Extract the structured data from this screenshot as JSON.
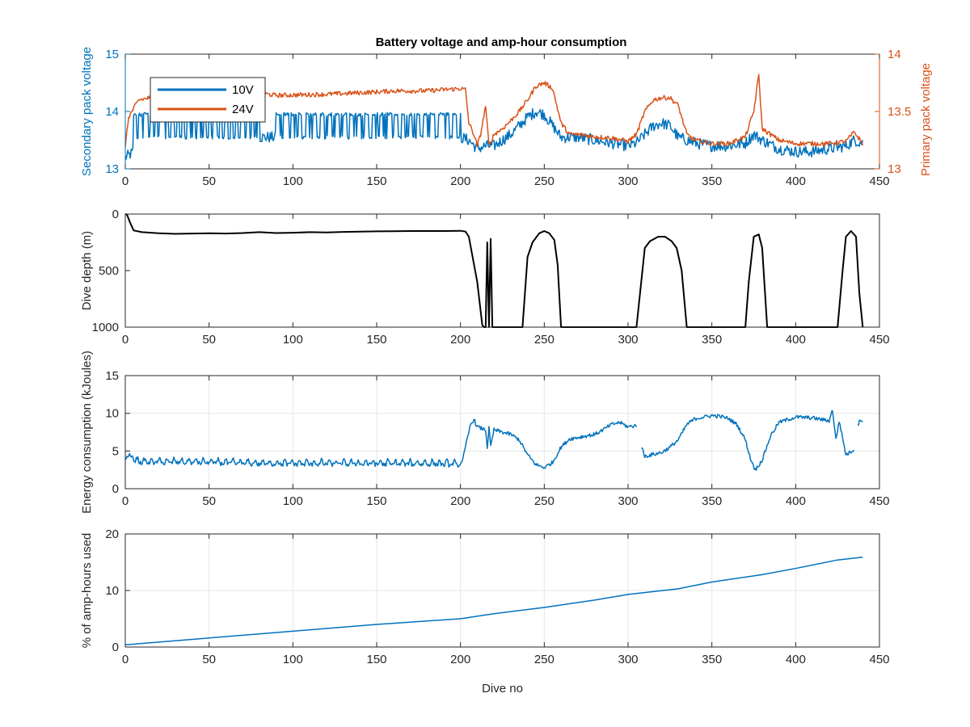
{
  "figure_title": "Battery voltage and amp-hour consumption",
  "colors": {
    "blue": "#0072BD",
    "orange": "#D95319",
    "black": "#000000",
    "axis": "#262626"
  },
  "chart_data": [
    {
      "type": "line",
      "title": "Battery voltage and amp-hour consumption",
      "xlabel": "",
      "ylabel": "Secondary pack voltage",
      "ylabel_right": "Primary pack voltage",
      "xlim": [
        0,
        450
      ],
      "ylim": [
        13,
        15
      ],
      "ylim_right": [
        13,
        14
      ],
      "xticks": [
        0,
        50,
        100,
        150,
        200,
        250,
        300,
        350,
        400,
        450
      ],
      "yticks": [
        13,
        14,
        15
      ],
      "yticks_right": [
        13,
        13.5,
        14
      ],
      "yticklabels_right": [
        "13",
        "13.5",
        "14"
      ],
      "grid": false,
      "legend": {
        "placement": "top-left",
        "entries": [
          "10V",
          "24V"
        ]
      },
      "series": [
        {
          "name": "10V",
          "axis": "left",
          "x": [
            0,
            3,
            10,
            20,
            30,
            40,
            50,
            60,
            70,
            80,
            90,
            100,
            110,
            120,
            130,
            140,
            150,
            160,
            170,
            180,
            190,
            200,
            205,
            210,
            215,
            220,
            225,
            230,
            235,
            240,
            245,
            250,
            255,
            260,
            270,
            280,
            290,
            300,
            305,
            310,
            315,
            320,
            325,
            330,
            340,
            350,
            360,
            370,
            375,
            380,
            390,
            400,
            410,
            420,
            430,
            435,
            440
          ],
          "y": [
            13.2,
            13.25,
            13.45,
            13.5,
            13.55,
            13.55,
            13.55,
            13.55,
            13.55,
            13.55,
            13.55,
            13.55,
            13.55,
            13.55,
            13.55,
            13.55,
            13.55,
            13.55,
            13.55,
            13.55,
            13.55,
            13.55,
            13.5,
            13.35,
            13.4,
            13.4,
            13.5,
            13.6,
            13.75,
            13.9,
            14.0,
            13.95,
            13.75,
            13.55,
            13.55,
            13.5,
            13.45,
            13.4,
            13.45,
            13.6,
            13.75,
            13.8,
            13.75,
            13.55,
            13.45,
            13.4,
            13.4,
            13.45,
            13.6,
            13.5,
            13.35,
            13.3,
            13.3,
            13.35,
            13.4,
            13.5,
            13.45
          ],
          "toggle_ranges": [
            [
              5,
              80,
              13.55,
              13.95,
              1.6
            ],
            [
              90,
              200,
              13.55,
              13.95,
              2.2
            ]
          ],
          "noise": 0.1
        },
        {
          "name": "24V",
          "axis": "right",
          "x": [
            0,
            2,
            8,
            15,
            20,
            50,
            80,
            90,
            120,
            150,
            160,
            180,
            200,
            203,
            205,
            208,
            210,
            212,
            215,
            217,
            220,
            225,
            230,
            235,
            240,
            245,
            250,
            255,
            260,
            265,
            270,
            280,
            290,
            300,
            305,
            310,
            315,
            320,
            325,
            330,
            335,
            340,
            350,
            360,
            370,
            375,
            378,
            380,
            385,
            390,
            400,
            410,
            420,
            430,
            435,
            440
          ],
          "y": [
            13.2,
            13.45,
            13.6,
            13.62,
            13.63,
            13.65,
            13.66,
            13.64,
            13.65,
            13.67,
            13.68,
            13.68,
            13.7,
            13.69,
            13.4,
            13.3,
            13.2,
            13.3,
            13.55,
            13.2,
            13.3,
            13.35,
            13.42,
            13.5,
            13.6,
            13.72,
            13.75,
            13.7,
            13.4,
            13.3,
            13.3,
            13.28,
            13.27,
            13.24,
            13.3,
            13.5,
            13.6,
            13.62,
            13.62,
            13.55,
            13.3,
            13.25,
            13.22,
            13.22,
            13.28,
            13.5,
            13.82,
            13.35,
            13.3,
            13.25,
            13.22,
            13.22,
            13.22,
            13.24,
            13.32,
            13.22
          ],
          "noise": 0.02
        }
      ]
    },
    {
      "type": "line",
      "title": "",
      "xlabel": "",
      "ylabel": "Dive depth (m)",
      "xlim": [
        0,
        450
      ],
      "ylim": [
        0,
        1000
      ],
      "y_reversed": true,
      "xticks": [
        0,
        50,
        100,
        150,
        200,
        250,
        300,
        350,
        400,
        450
      ],
      "yticks": [
        0,
        500,
        1000
      ],
      "grid": false,
      "series": [
        {
          "name": "",
          "color": "#000000",
          "x": [
            0,
            1,
            3,
            5,
            10,
            20,
            30,
            40,
            50,
            60,
            70,
            80,
            90,
            100,
            110,
            120,
            130,
            140,
            150,
            160,
            170,
            180,
            190,
            200,
            203,
            205,
            210,
            213,
            214,
            215,
            216,
            217,
            218,
            219,
            220,
            225,
            230,
            237,
            240,
            243,
            247,
            250,
            253,
            256,
            258,
            260,
            263,
            270,
            280,
            290,
            300,
            305,
            310,
            313,
            318,
            322,
            326,
            329,
            332,
            335,
            340,
            350,
            360,
            370,
            372,
            375,
            378,
            380,
            383,
            390,
            400,
            410,
            420,
            425,
            428,
            430,
            433,
            436,
            438,
            440
          ],
          "y": [
            0,
            5,
            80,
            145,
            160,
            170,
            175,
            172,
            170,
            172,
            168,
            160,
            168,
            165,
            160,
            162,
            158,
            155,
            153,
            152,
            150,
            150,
            150,
            148,
            155,
            200,
            600,
            980,
            1000,
            1000,
            250,
            1000,
            220,
            1000,
            1000,
            1000,
            1000,
            1000,
            380,
            250,
            170,
            150,
            170,
            230,
            450,
            1000,
            1000,
            1000,
            1000,
            1000,
            1000,
            1000,
            300,
            240,
            200,
            200,
            240,
            300,
            500,
            1000,
            1000,
            1000,
            1000,
            1000,
            600,
            200,
            180,
            300,
            1000,
            1000,
            1000,
            1000,
            1000,
            1000,
            500,
            200,
            150,
            200,
            700,
            1000
          ]
        }
      ]
    },
    {
      "type": "line",
      "title": "",
      "xlabel": "",
      "ylabel": "Energy consumption (kJoules)",
      "xlim": [
        0,
        450
      ],
      "ylim": [
        0,
        15
      ],
      "xticks": [
        0,
        50,
        100,
        150,
        200,
        250,
        300,
        350,
        400,
        450
      ],
      "yticks": [
        0,
        5,
        10,
        15
      ],
      "grid": true,
      "series": [
        {
          "name": "",
          "color": "#0072BD",
          "segments": [
            {
              "x": [
                0,
                2,
                4,
                6,
                10,
                20,
                40,
                60,
                80,
                100,
                120,
                140,
                160,
                180,
                200,
                202,
                204,
                206,
                208,
                210,
                215,
                216,
                217,
                218,
                220,
                230,
                235,
                240,
                245,
                250,
                255,
                260,
                265,
                270,
                275,
                280,
                285,
                290,
                295,
                300,
                305
              ],
              "y": [
                3.8,
                4.5,
                4.2,
                3.6,
                3.4,
                3.4,
                3.4,
                3.3,
                3.2,
                3.2,
                3.2,
                3.2,
                3.2,
                3.2,
                3.1,
                4.5,
                6.5,
                8.5,
                9.2,
                8.2,
                7.8,
                5.5,
                8.0,
                5.6,
                7.8,
                7.2,
                6.5,
                4.5,
                3.2,
                2.8,
                3.5,
                5.5,
                6.6,
                6.8,
                7.0,
                7.2,
                7.8,
                8.5,
                8.8,
                8.2,
                8.4
              ],
              "ripple": [
                6,
                200,
                0.6,
                4.4
              ]
            },
            {
              "x": [
                308,
                310,
                320,
                325,
                330,
                335,
                340,
                350,
                355,
                360,
                365,
                370,
                373,
                376,
                380,
                385,
                390,
                400,
                410,
                415,
                420,
                422,
                424,
                426,
                430,
                435
              ],
              "y": [
                5.5,
                4.3,
                4.8,
                5.5,
                6.5,
                8.5,
                9.3,
                9.7,
                9.6,
                9.3,
                8.5,
                6.5,
                4.0,
                2.5,
                3.8,
                7.0,
                8.8,
                9.5,
                9.4,
                9.2,
                9.0,
                10.5,
                6.5,
                9.0,
                4.5,
                5.2
              ]
            },
            {
              "x": [
                437,
                439,
                440
              ],
              "y": [
                8.5,
                9.2,
                9.0
              ]
            }
          ],
          "noise": 0.25
        }
      ]
    },
    {
      "type": "line",
      "title": "",
      "xlabel": "Dive no",
      "ylabel": "% of amp-hours used",
      "xlim": [
        0,
        450
      ],
      "ylim": [
        0,
        20
      ],
      "xticks": [
        0,
        50,
        100,
        150,
        200,
        250,
        300,
        350,
        400,
        450
      ],
      "yticks": [
        0,
        10,
        20
      ],
      "grid": true,
      "series": [
        {
          "name": "",
          "color": "#0072BD",
          "x": [
            0,
            50,
            100,
            150,
            200,
            220,
            250,
            280,
            300,
            330,
            350,
            380,
            400,
            425,
            440
          ],
          "y": [
            0.4,
            1.6,
            2.8,
            4.0,
            5.0,
            5.9,
            7.0,
            8.3,
            9.3,
            10.3,
            11.5,
            12.8,
            13.9,
            15.4,
            15.9
          ]
        }
      ]
    }
  ]
}
